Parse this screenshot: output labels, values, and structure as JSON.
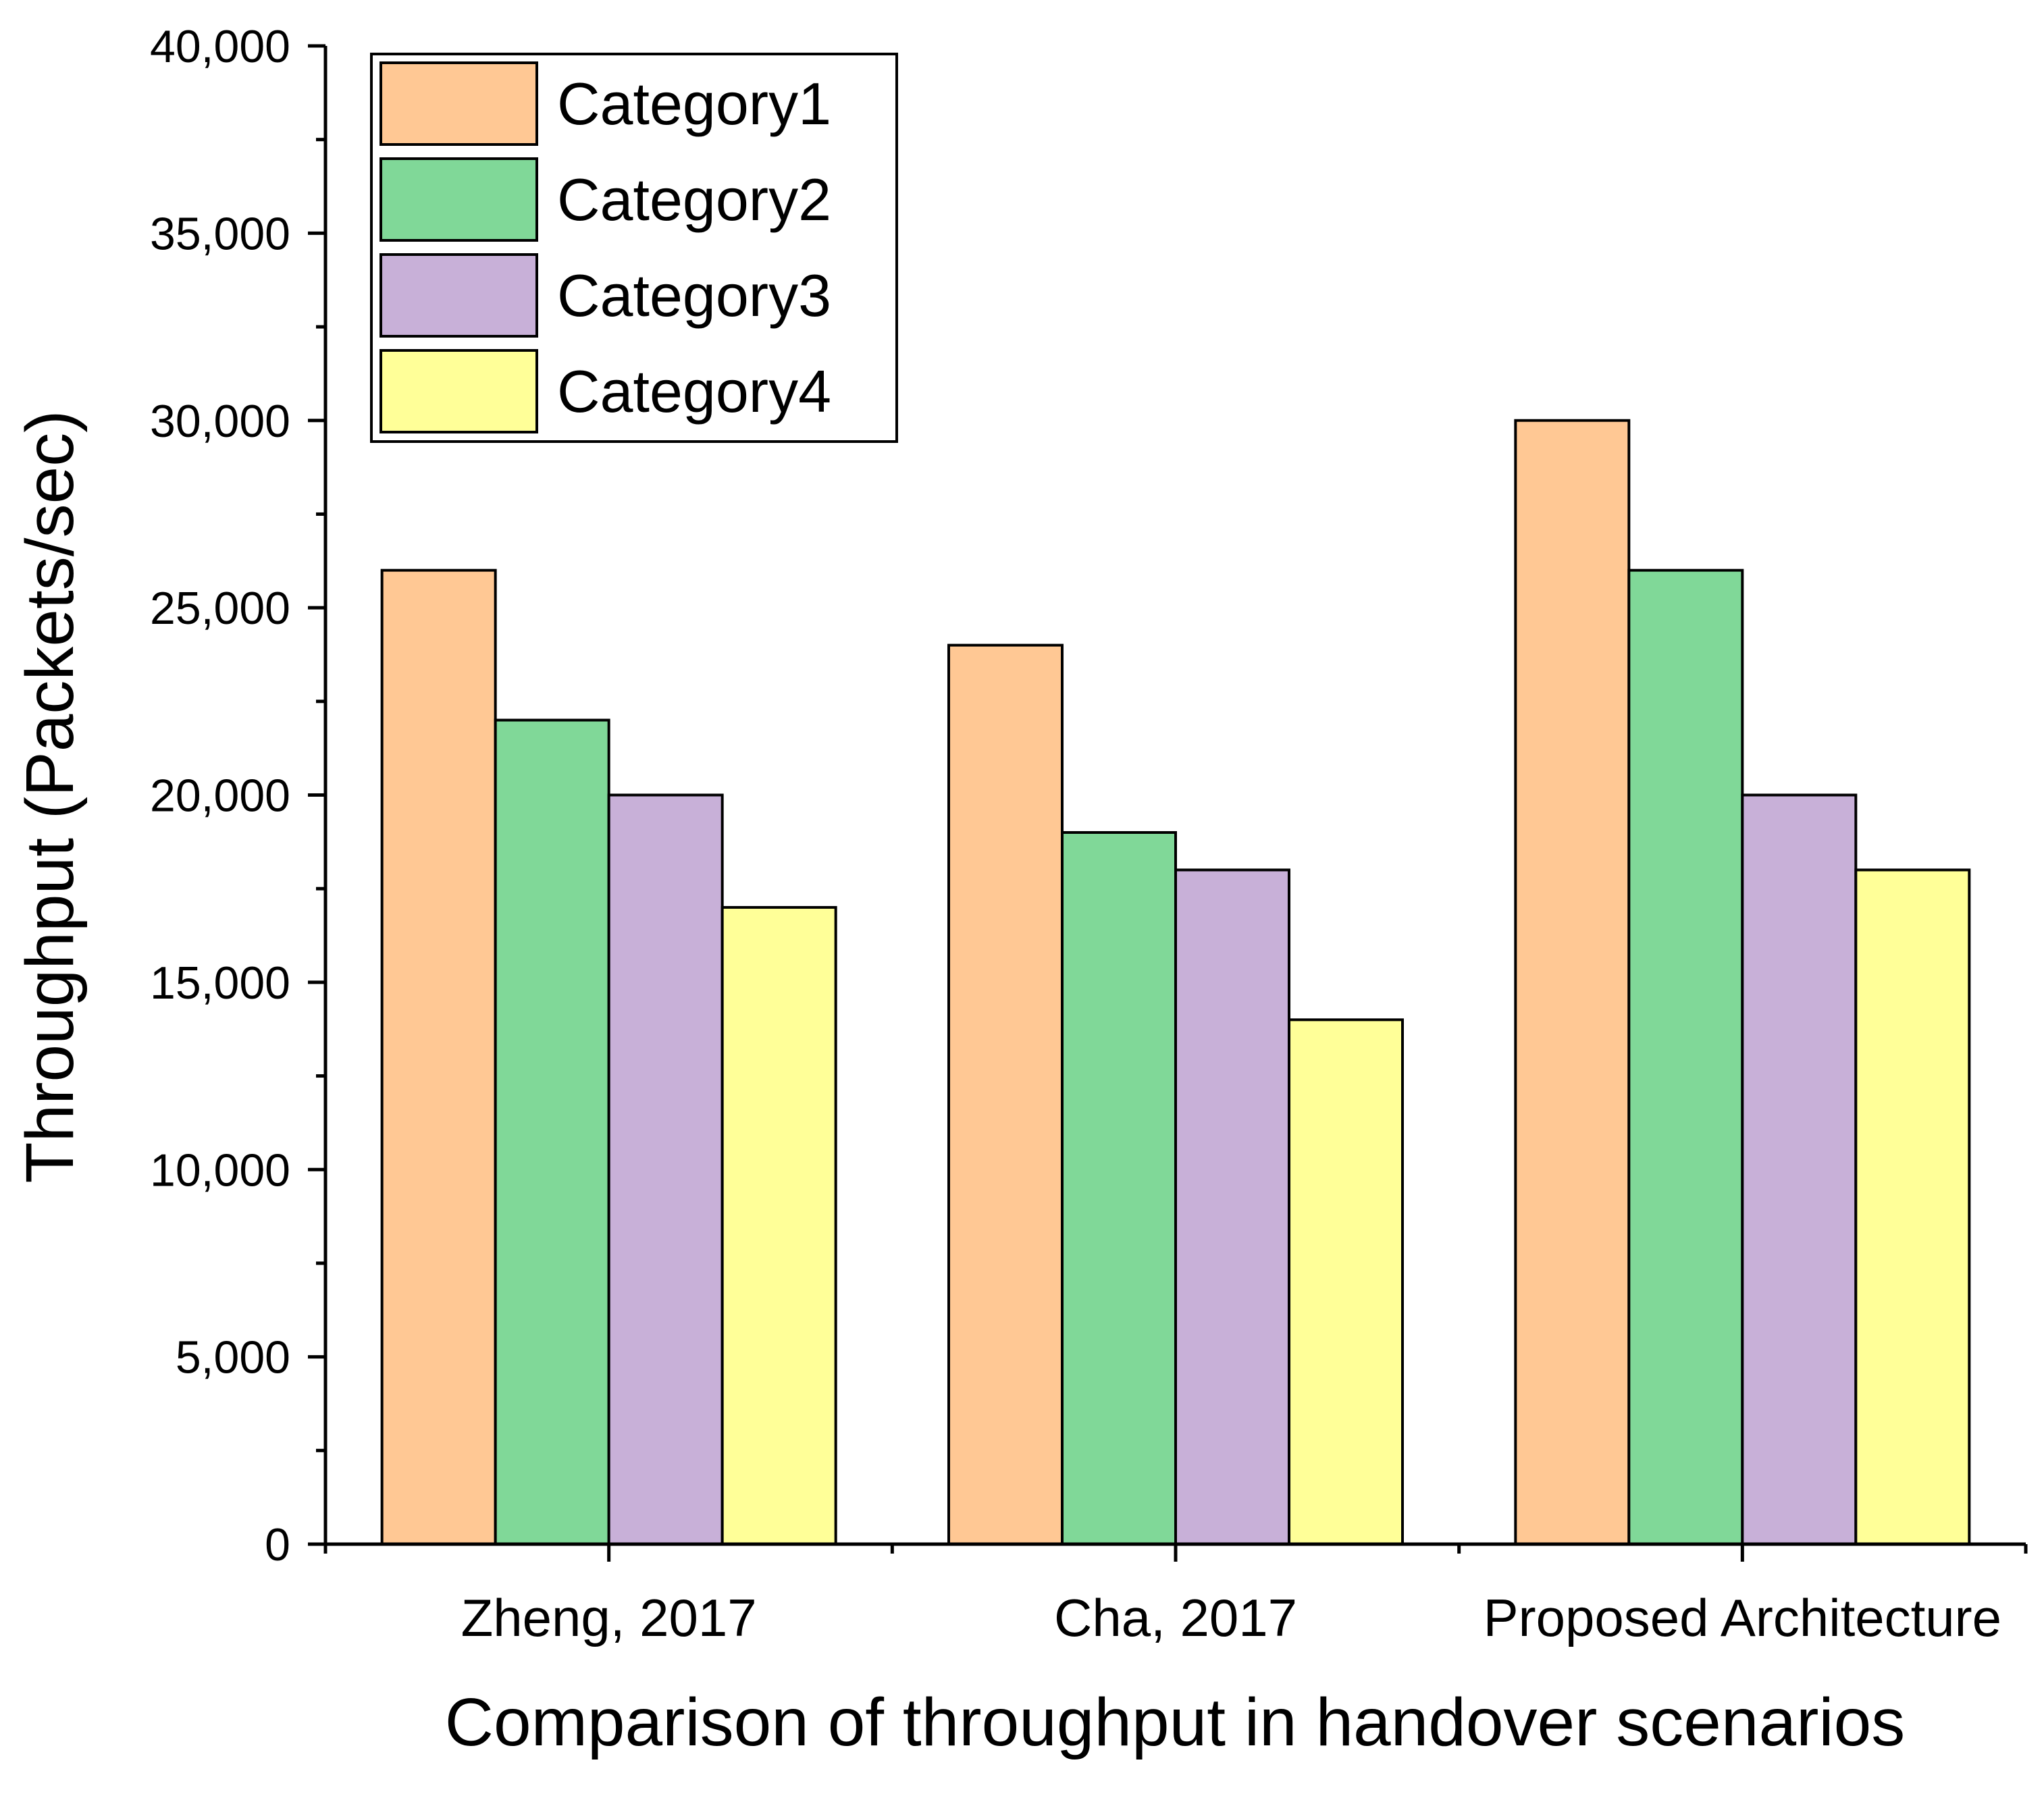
{
  "chart_data": {
    "type": "bar",
    "title": "",
    "xlabel": "Comparison of throughput in handover scenarios",
    "ylabel": "Throughput (Packets/sec)",
    "ylim": [
      0,
      40000
    ],
    "yticks": [
      0,
      5000,
      10000,
      15000,
      20000,
      25000,
      30000,
      35000,
      40000
    ],
    "ytick_labels": [
      "0",
      "5,000",
      "10,000",
      "15,000",
      "20,000",
      "25,000",
      "30,000",
      "35,000",
      "40,000"
    ],
    "categories": [
      "Zheng, 2017",
      "Cha, 2017",
      "Proposed Architecture"
    ],
    "series": [
      {
        "name": "Category1",
        "color": "#FFC894",
        "values": [
          26000,
          24000,
          30000
        ]
      },
      {
        "name": "Category2",
        "color": "#80D898",
        "values": [
          22000,
          19000,
          26000
        ]
      },
      {
        "name": "Category3",
        "color": "#C8B0D8",
        "values": [
          20000,
          18000,
          20000
        ]
      },
      {
        "name": "Category4",
        "color": "#FFFF98",
        "values": [
          17000,
          14000,
          18000
        ]
      }
    ],
    "legend_position": "top-left",
    "grid": false
  }
}
